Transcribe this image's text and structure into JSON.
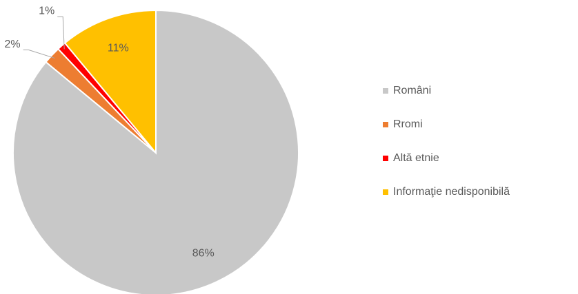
{
  "chart_data": {
    "type": "pie",
    "categories": [
      "Români",
      "Rromi",
      "Altă etnie",
      "Informaţie nedisponibilă"
    ],
    "values": [
      86,
      2,
      1,
      11
    ],
    "value_labels": [
      "86%",
      "2%",
      "1%",
      "11%"
    ],
    "colors": [
      "#c8c8c8",
      "#ed7d31",
      "#ff0000",
      "#ffc000"
    ],
    "legend": "right"
  }
}
